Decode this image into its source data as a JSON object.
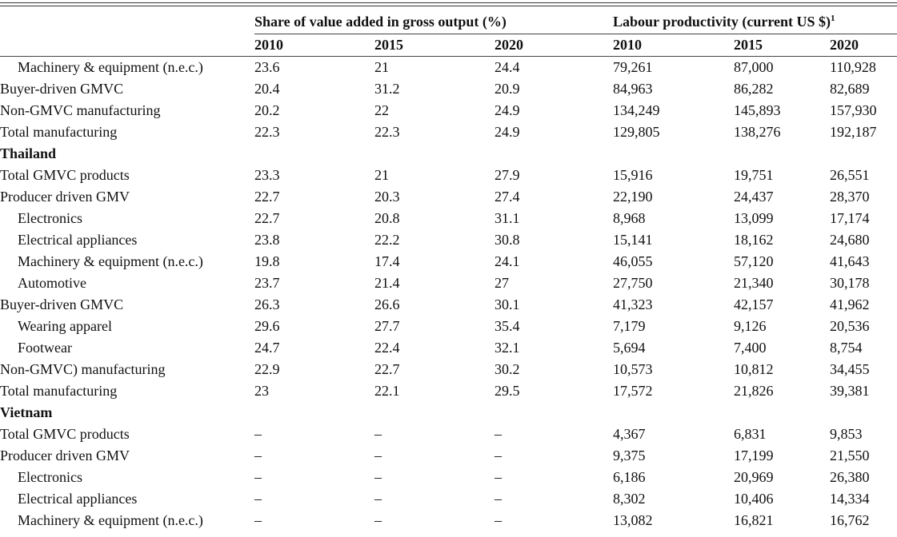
{
  "header": {
    "share_group": "Share of value added in gross output (%)",
    "labour_group": "Labour productivity (current US $)",
    "labour_footnote": "1",
    "years": [
      "2010",
      "2015",
      "2020",
      "2010",
      "2015",
      "2020"
    ]
  },
  "rows": [
    {
      "label": "Machinery & equipment (n.e.c.)",
      "indent": true,
      "v": [
        "23.6",
        "21",
        "24.4",
        "79,261",
        "87,000",
        "110,928"
      ]
    },
    {
      "label": "Buyer-driven GMVC",
      "indent": false,
      "v": [
        "20.4",
        "31.2",
        "20.9",
        "84,963",
        "86,282",
        "82,689"
      ]
    },
    {
      "label": "Non-GMVC manufacturing",
      "indent": false,
      "v": [
        "20.2",
        "22",
        "24.9",
        "134,249",
        "145,893",
        "157,930"
      ]
    },
    {
      "label": "Total manufacturing",
      "indent": false,
      "v": [
        "22.3",
        "22.3",
        "24.9",
        "129,805",
        "138,276",
        "192,187"
      ]
    },
    {
      "label": "Thailand",
      "country": true,
      "v": [
        "",
        "",
        "",
        "",
        "",
        ""
      ]
    },
    {
      "label": "Total GMVC products",
      "indent": false,
      "v": [
        "23.3",
        "21",
        "27.9",
        "15,916",
        "19,751",
        "26,551"
      ]
    },
    {
      "label": "Producer driven GMV",
      "indent": false,
      "v": [
        "22.7",
        "20.3",
        "27.4",
        "22,190",
        "24,437",
        "28,370"
      ]
    },
    {
      "label": "Electronics",
      "indent": true,
      "v": [
        "22.7",
        "20.8",
        "31.1",
        "8,968",
        "13,099",
        "17,174"
      ]
    },
    {
      "label": "Electrical appliances",
      "indent": true,
      "v": [
        "23.8",
        "22.2",
        "30.8",
        "15,141",
        "18,162",
        "24,680"
      ]
    },
    {
      "label": "Machinery & equipment (n.e.c.)",
      "indent": true,
      "v": [
        "19.8",
        "17.4",
        "24.1",
        "46,055",
        "57,120",
        "41,643"
      ]
    },
    {
      "label": "Automotive",
      "indent": true,
      "v": [
        "23.7",
        "21.4",
        "27",
        "27,750",
        "21,340",
        "30,178"
      ]
    },
    {
      "label": "Buyer-driven GMVC",
      "indent": false,
      "v": [
        "26.3",
        "26.6",
        "30.1",
        "41,323",
        "42,157",
        "41,962"
      ]
    },
    {
      "label": "Wearing apparel",
      "indent": true,
      "v": [
        "29.6",
        "27.7",
        "35.4",
        "7,179",
        "9,126",
        "20,536"
      ]
    },
    {
      "label": "Footwear",
      "indent": true,
      "v": [
        "24.7",
        "22.4",
        "32.1",
        "5,694",
        "7,400",
        "8,754"
      ]
    },
    {
      "label": "Non-GMVC) manufacturing",
      "indent": false,
      "v": [
        "22.9",
        "22.7",
        "30.2",
        "10,573",
        "10,812",
        "34,455"
      ]
    },
    {
      "label": "Total manufacturing",
      "indent": false,
      "v": [
        "23",
        "22.1",
        "29.5",
        "17,572",
        "21,826",
        "39,381"
      ]
    },
    {
      "label": "Vietnam",
      "country": true,
      "v": [
        "",
        "",
        "",
        "",
        "",
        ""
      ]
    },
    {
      "label": "Total GMVC products",
      "indent": false,
      "v": [
        "–",
        "–",
        "–",
        "4,367",
        "6,831",
        "9,853"
      ]
    },
    {
      "label": "Producer driven GMV",
      "indent": false,
      "v": [
        "–",
        "–",
        "–",
        "9,375",
        "17,199",
        "21,550"
      ]
    },
    {
      "label": "Electronics",
      "indent": true,
      "v": [
        "–",
        "–",
        "–",
        "6,186",
        "20,969",
        "26,380"
      ]
    },
    {
      "label": "Electrical appliances",
      "indent": true,
      "v": [
        "–",
        "–",
        "–",
        "8,302",
        "10,406",
        "14,334"
      ]
    },
    {
      "label": "Machinery & equipment (n.e.c.)",
      "indent": true,
      "v": [
        "–",
        "–",
        "–",
        "13,082",
        "16,821",
        "16,762"
      ]
    }
  ]
}
